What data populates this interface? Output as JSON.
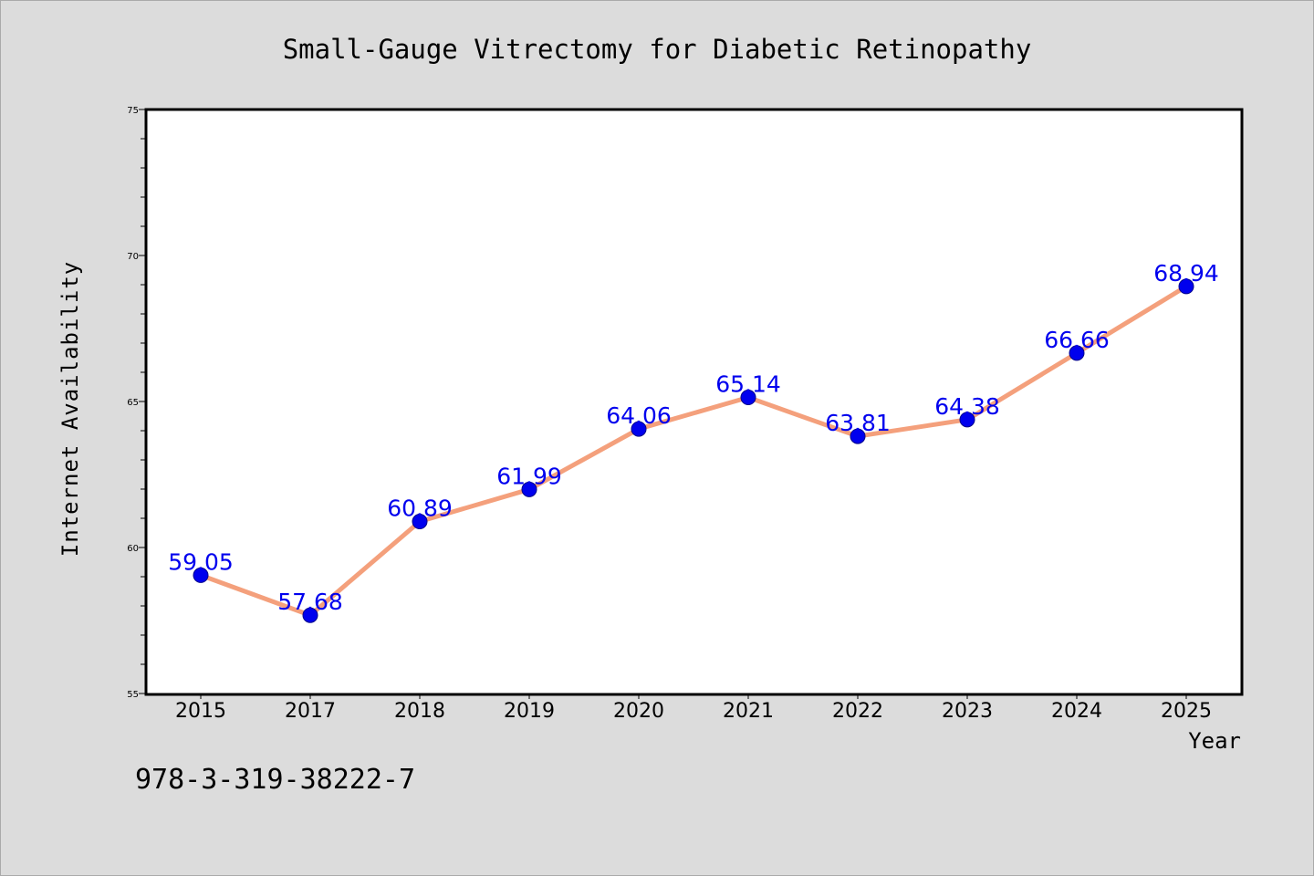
{
  "chart_data": {
    "type": "line",
    "title": "Small-Gauge Vitrectomy for Diabetic Retinopathy",
    "xlabel": "Year",
    "ylabel": "Internet Availability",
    "categories": [
      "2015",
      "2017",
      "2018",
      "2019",
      "2020",
      "2021",
      "2022",
      "2023",
      "2024",
      "2025"
    ],
    "series": [
      {
        "values": [
          59.05,
          57.68,
          60.89,
          61.99,
          64.06,
          65.14,
          63.81,
          64.38,
          66.66,
          68.94
        ]
      }
    ],
    "data_labels": [
      "59.05",
      "57.68",
      "60.89",
      "61.99",
      "64.06",
      "65.14",
      "63.81",
      "64.38",
      "66.66",
      "68.94"
    ],
    "ylim": [
      55,
      75
    ],
    "yticks": [
      "55",
      "60",
      "65",
      "70",
      "75"
    ],
    "grid": false,
    "legend": "none"
  },
  "footer": {
    "isbn": "978-3-319-38222-7"
  },
  "colors": {
    "background": "#dcdcdc",
    "plot_background": "#ffffff",
    "line": "#f4a07c",
    "marker": "#0000ee",
    "data_label": "#0000ee"
  }
}
